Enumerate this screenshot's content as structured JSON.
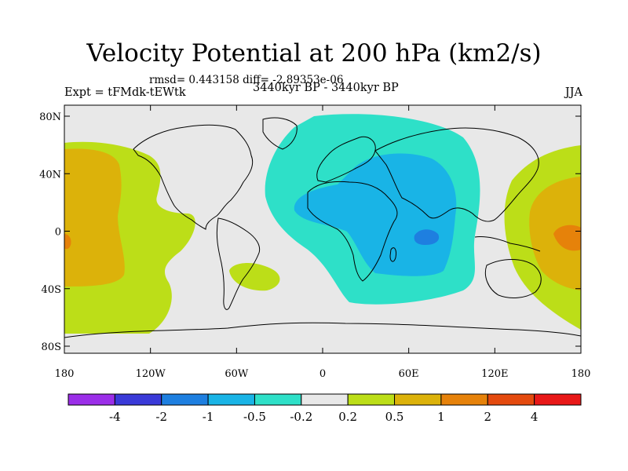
{
  "title": "Velocity Potential at 200 hPa (km2/s)",
  "stats": "rmsd= 0.443158  diff= -2.89353e-06",
  "experiment": "Expt = tFMdk-tEWtk",
  "period": "3440kyr BP - 3440kyr BP",
  "season": "JJA",
  "y_ticks": [
    "80N",
    "40N",
    "0",
    "40S",
    "80S"
  ],
  "x_ticks": [
    "180",
    "120W",
    "60W",
    "0",
    "60E",
    "120E",
    "180"
  ],
  "colorbar": {
    "colors": [
      "#9b2ee8",
      "#3a3ad8",
      "#1e7fe0",
      "#19b4e6",
      "#2ee0c8",
      "#e8e8e8",
      "#bcde18",
      "#dcb20a",
      "#e6820a",
      "#e44a0e",
      "#e81818"
    ],
    "labels": [
      "-4",
      "-2",
      "-1",
      "-0.5",
      "-0.2",
      "0.2",
      "0.5",
      "1",
      "2",
      "4"
    ]
  },
  "map_colors": {
    "background": "#e8e8e8",
    "negative_weak": "#2ee0c8",
    "negative_mid": "#19b4e6",
    "negative_strong": "#1e7fe0",
    "positive_weak": "#bcde18",
    "positive_mid": "#dcb20a",
    "positive_strong": "#e6820a"
  }
}
